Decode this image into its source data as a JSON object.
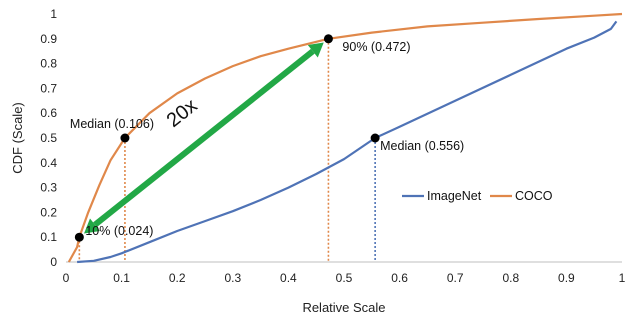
{
  "chart_data": {
    "type": "line",
    "title": "",
    "xlabel": "Relative Scale",
    "ylabel": "CDF (Scale)",
    "xlim": [
      0,
      1
    ],
    "ylim": [
      0,
      1
    ],
    "xticks": [
      "0",
      "0.1",
      "0.2",
      "0.3",
      "0.4",
      "0.5",
      "0.6",
      "0.7",
      "0.8",
      "0.9",
      "1"
    ],
    "yticks": [
      "0",
      "0.1",
      "0.2",
      "0.3",
      "0.4",
      "0.5",
      "0.6",
      "0.7",
      "0.8",
      "0.9",
      "1"
    ],
    "grid": false,
    "legend_position": "right",
    "series": [
      {
        "name": "ImageNet",
        "color": "#4f73b6",
        "points": [
          [
            0.02,
            0
          ],
          [
            0.05,
            0.005
          ],
          [
            0.08,
            0.02
          ],
          [
            0.1,
            0.035
          ],
          [
            0.15,
            0.08
          ],
          [
            0.2,
            0.125
          ],
          [
            0.25,
            0.165
          ],
          [
            0.3,
            0.205
          ],
          [
            0.35,
            0.25
          ],
          [
            0.4,
            0.3
          ],
          [
            0.45,
            0.355
          ],
          [
            0.5,
            0.415
          ],
          [
            0.556,
            0.5
          ],
          [
            0.6,
            0.545
          ],
          [
            0.7,
            0.65
          ],
          [
            0.8,
            0.755
          ],
          [
            0.9,
            0.86
          ],
          [
            0.95,
            0.905
          ],
          [
            0.98,
            0.94
          ],
          [
            0.99,
            0.97
          ]
        ]
      },
      {
        "name": "COCO",
        "color": "#e0884a",
        "points": [
          [
            0.005,
            0
          ],
          [
            0.01,
            0.02
          ],
          [
            0.015,
            0.04
          ],
          [
            0.02,
            0.06
          ],
          [
            0.024,
            0.1
          ],
          [
            0.04,
            0.2
          ],
          [
            0.06,
            0.31
          ],
          [
            0.08,
            0.41
          ],
          [
            0.106,
            0.5
          ],
          [
            0.15,
            0.6
          ],
          [
            0.2,
            0.68
          ],
          [
            0.25,
            0.74
          ],
          [
            0.3,
            0.79
          ],
          [
            0.35,
            0.83
          ],
          [
            0.4,
            0.86
          ],
          [
            0.472,
            0.9
          ],
          [
            0.55,
            0.925
          ],
          [
            0.65,
            0.95
          ],
          [
            0.75,
            0.965
          ],
          [
            0.85,
            0.98
          ],
          [
            0.95,
            0.993
          ],
          [
            1.0,
            1.0
          ]
        ]
      }
    ],
    "markers": [
      {
        "x": 0.024,
        "y": 0.1,
        "label": "10% (0.024)",
        "line_color": "#e0884a"
      },
      {
        "x": 0.106,
        "y": 0.5,
        "label": "Median (0.106)",
        "line_color": "#e0884a"
      },
      {
        "x": 0.472,
        "y": 0.9,
        "label": "90% (0.472)",
        "line_color": "#e0884a"
      },
      {
        "x": 0.556,
        "y": 0.5,
        "label": "Median (0.556)",
        "line_color": "#4f73b6"
      }
    ],
    "arrow": {
      "from": [
        0.024,
        0.1
      ],
      "to": [
        0.472,
        0.9
      ],
      "label": "20x",
      "color": "#22a846"
    }
  }
}
